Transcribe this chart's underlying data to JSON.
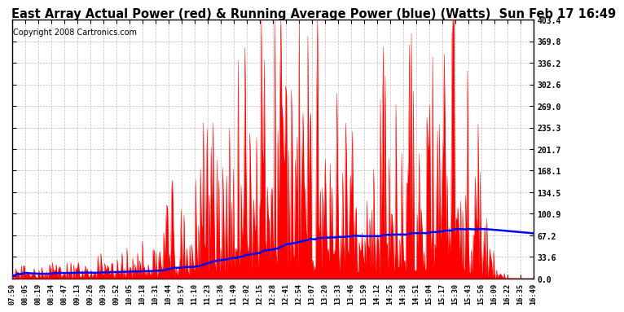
{
  "title": "East Array Actual Power (red) & Running Average Power (blue) (Watts)  Sun Feb 17 16:49",
  "copyright": "Copyright 2008 Cartronics.com",
  "ylim": [
    0.0,
    403.4
  ],
  "yticks": [
    0.0,
    33.6,
    67.2,
    100.9,
    134.5,
    168.1,
    201.7,
    235.3,
    269.0,
    302.6,
    336.2,
    369.8,
    403.4
  ],
  "xtick_labels": [
    "07:50",
    "08:05",
    "08:19",
    "08:34",
    "08:47",
    "09:13",
    "09:26",
    "09:39",
    "09:52",
    "10:05",
    "10:18",
    "10:31",
    "10:44",
    "10:57",
    "11:10",
    "11:23",
    "11:36",
    "11:49",
    "12:02",
    "12:15",
    "12:28",
    "12:41",
    "12:54",
    "13:07",
    "13:20",
    "13:33",
    "13:46",
    "13:59",
    "14:12",
    "14:25",
    "14:38",
    "14:51",
    "15:04",
    "15:17",
    "15:30",
    "15:43",
    "15:56",
    "16:09",
    "16:22",
    "16:35",
    "16:49"
  ],
  "background_color": "#ffffff",
  "plot_bg_color": "#ffffff",
  "grid_color": "#bbbbbb",
  "actual_color": "#ff0000",
  "avg_color": "#0000ff",
  "title_fontsize": 10.5,
  "copyright_fontsize": 7
}
